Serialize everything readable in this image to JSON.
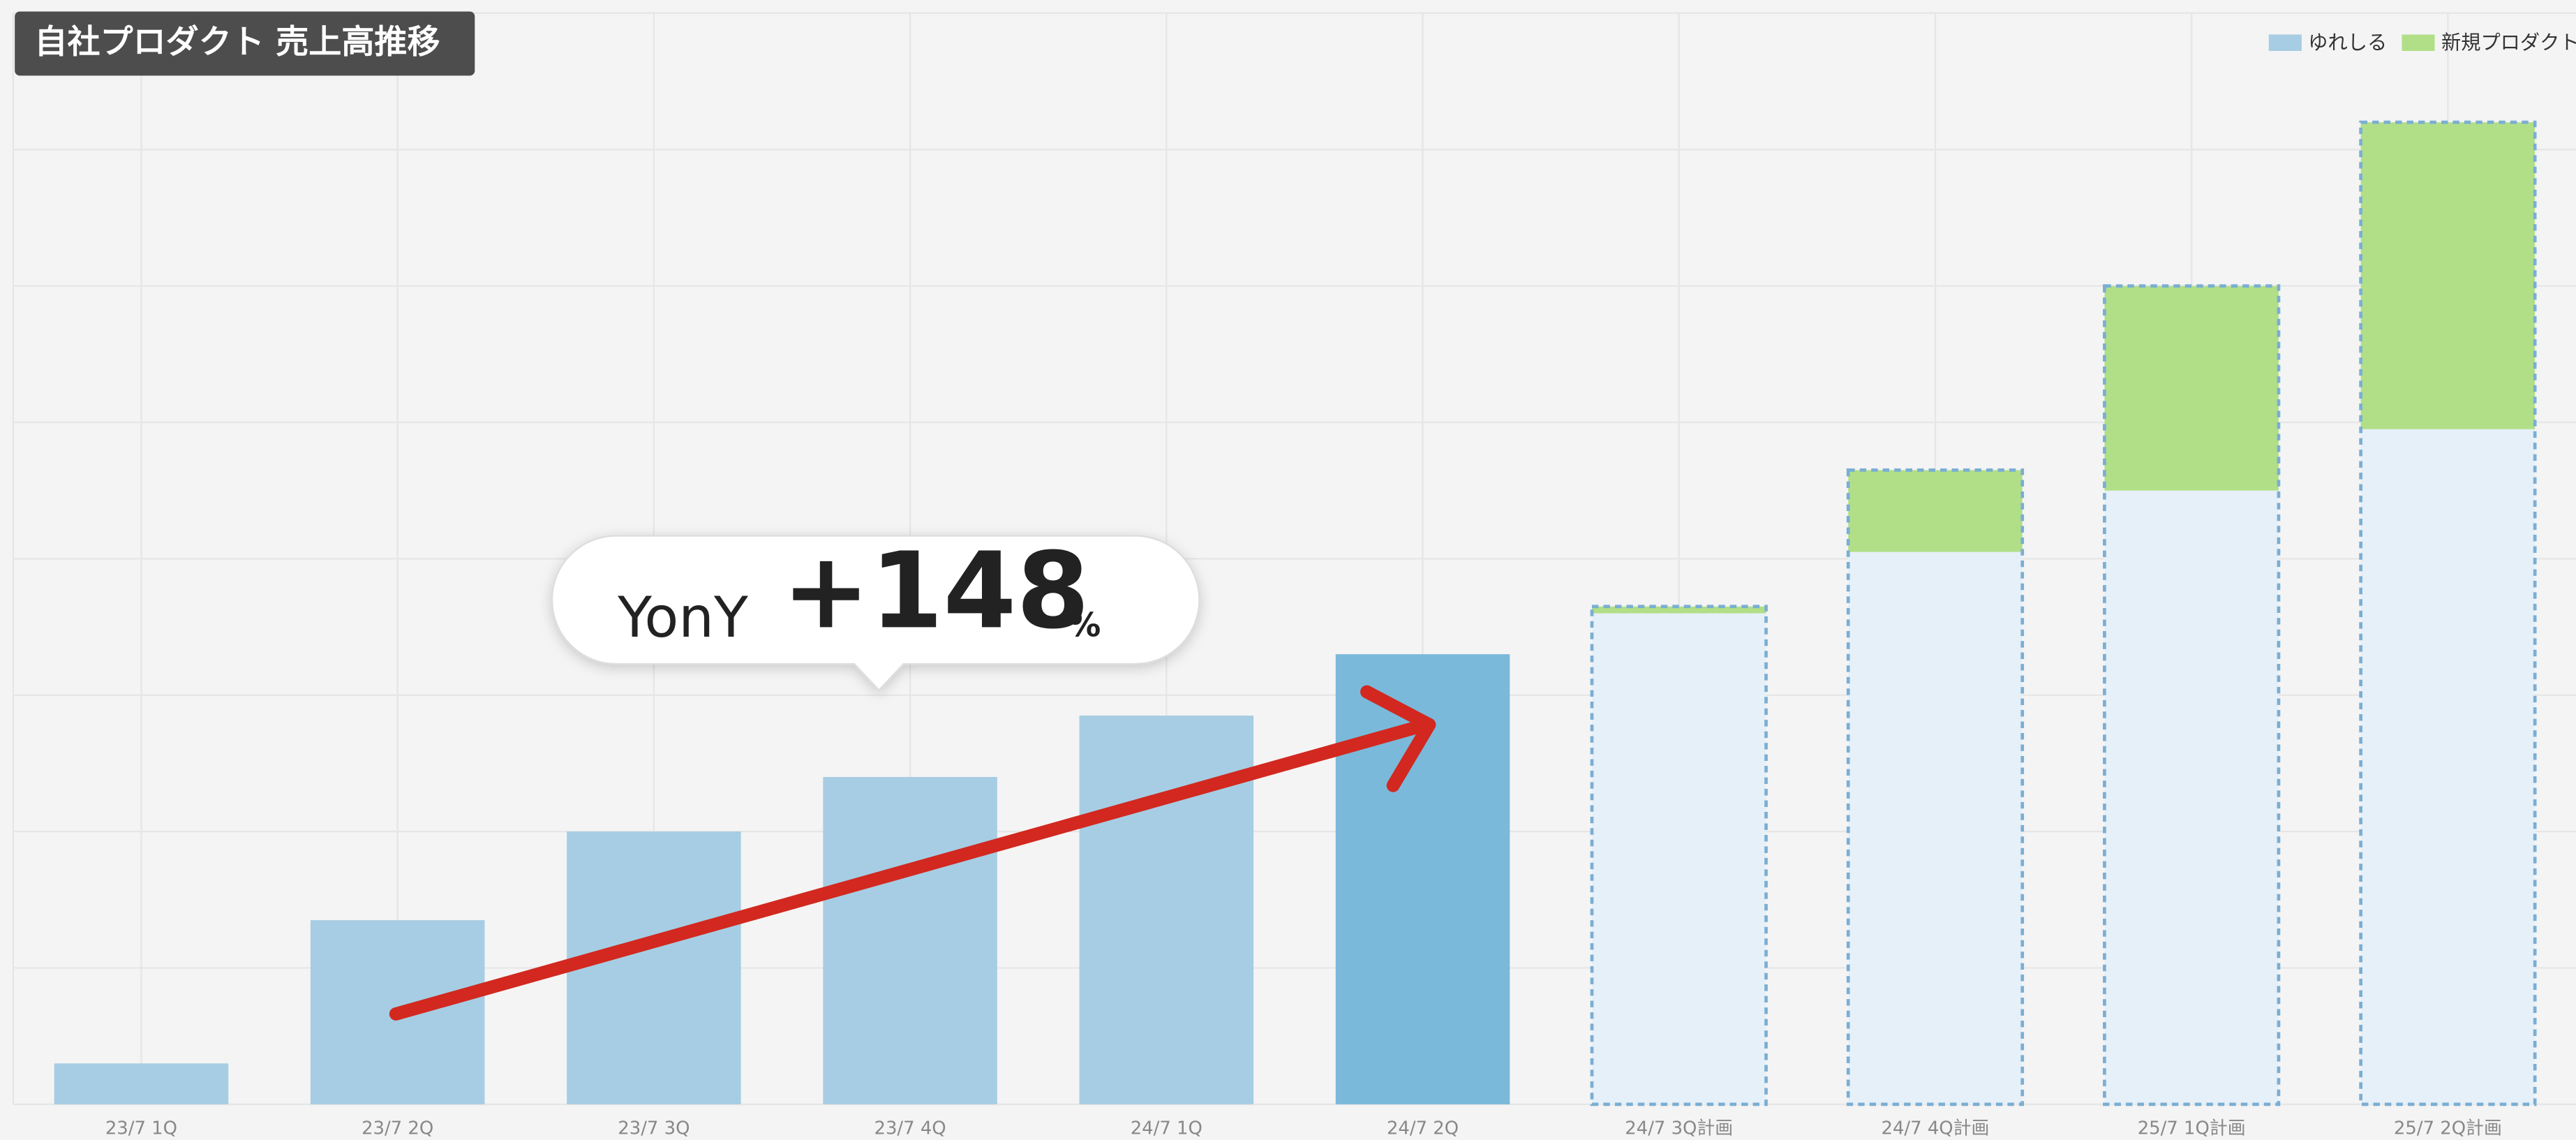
{
  "chart_data": {
    "type": "stacked_bar",
    "title": "自社プロダクト 売上高推移",
    "categories": [
      "23/7 1Q",
      "23/7 2Q",
      "23/7 3Q",
      "23/7 4Q",
      "24/7 1Q",
      "24/7 2Q",
      "24/7 3Q計画",
      "24/7 4Q計画",
      "25/7 1Q計画",
      "25/7 2Q計画"
    ],
    "series": [
      {
        "name": "ゆれしる",
        "color": "#a6cde3",
        "values": [
          0.3,
          1.35,
          2.0,
          2.4,
          2.85,
          3.3,
          3.6,
          4.05,
          4.5,
          4.95
        ],
        "point_colors": [
          "#a6cde3",
          "#a6cde3",
          "#a6cde3",
          "#a6cde3",
          "#a6cde3",
          "#7ab9da",
          "#e6f0f8",
          "#e6f0f8",
          "#e6f0f8",
          "#e6f0f8"
        ]
      },
      {
        "name": "新規プロダクト",
        "color": "#b1df88",
        "values": [
          0,
          0,
          0,
          0,
          0,
          0,
          0.05,
          0.6,
          1.5,
          2.25
        ]
      }
    ],
    "dashed": [
      false,
      false,
      false,
      false,
      false,
      false,
      true,
      true,
      true,
      true
    ],
    "dash_color": "#7aaed4",
    "ylim": [
      0,
      8
    ],
    "yticks": [
      0,
      1,
      2,
      3,
      4,
      5,
      6,
      7,
      8
    ],
    "grid": true,
    "legend": "top-right",
    "annotation": {
      "label": "YonY",
      "value": "+148",
      "unit": "%"
    }
  }
}
